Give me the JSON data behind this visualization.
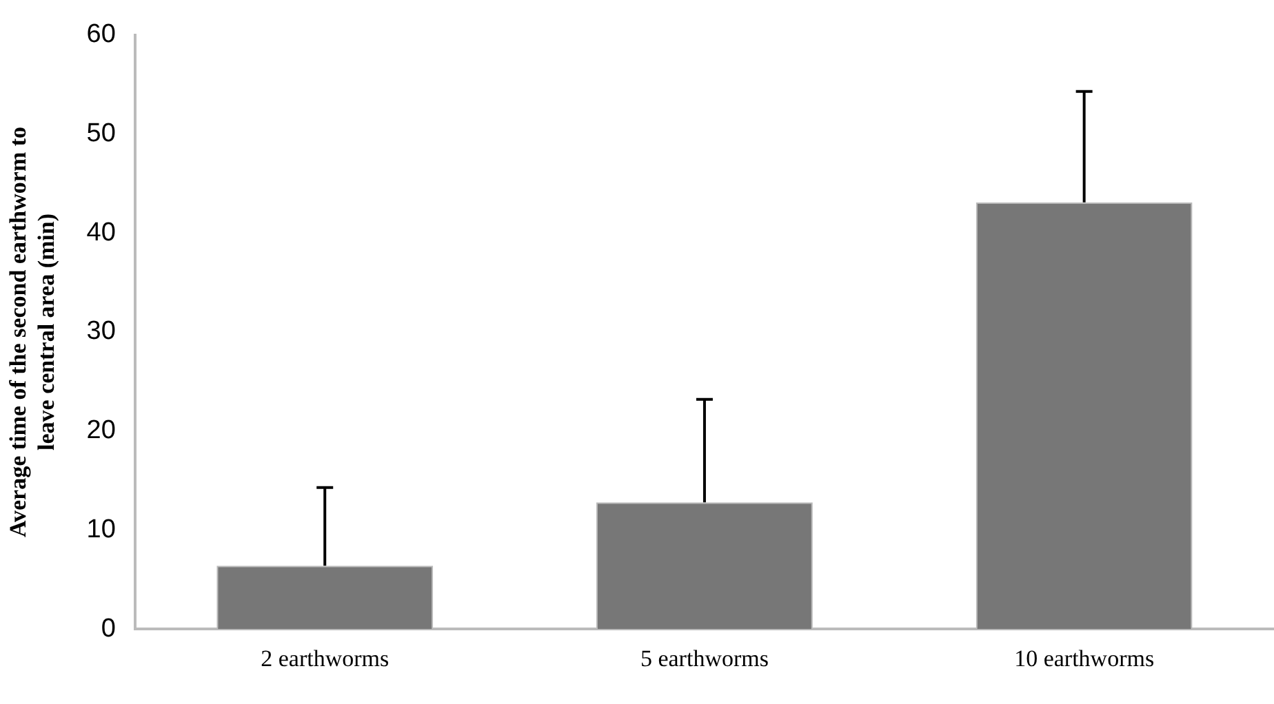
{
  "chart_data": {
    "type": "bar",
    "ylabel": "Average time of the second earthworm to leave central area (min)",
    "categories": [
      "2 earthworms",
      "5 earthworms",
      "10 earthworms"
    ],
    "values": [
      6.4,
      12.8,
      43.1
    ],
    "color": "#777777",
    "errors": [
      [
        6.4,
        14.3
      ],
      [
        12.8,
        23.2
      ],
      [
        43.1,
        54.3
      ]
    ],
    "ylim": [
      0,
      60
    ],
    "yticks": [
      0,
      10,
      20,
      30,
      40,
      50,
      60
    ],
    "grid": false,
    "legend": false
  }
}
